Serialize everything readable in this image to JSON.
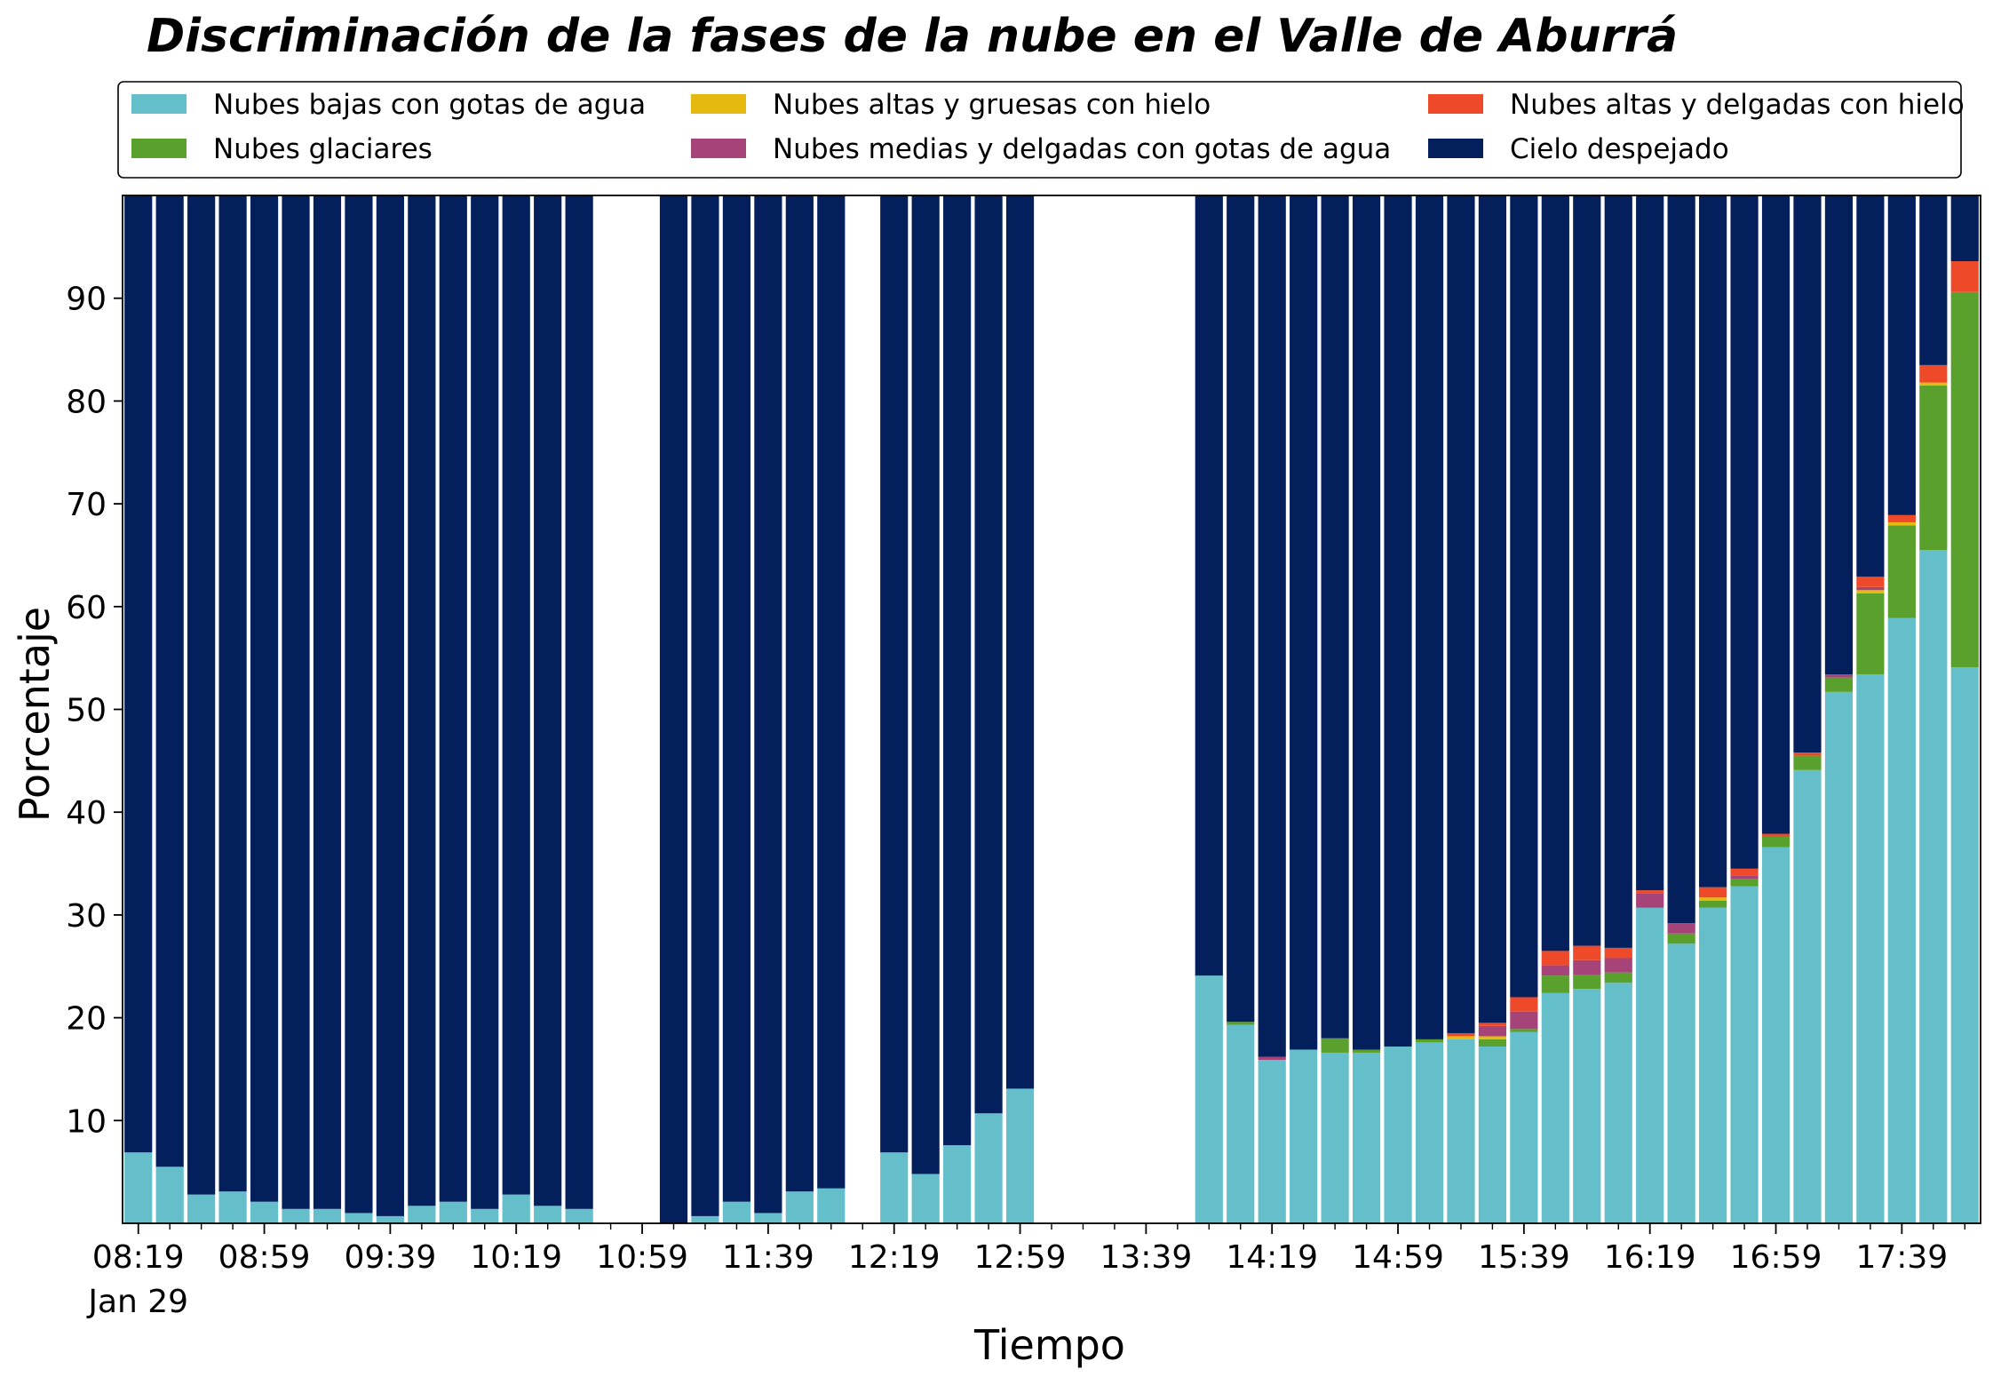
{
  "chart_data": {
    "type": "bar",
    "stacked": true,
    "title": "Discriminación de la fases de la nube en el Valle de Aburrá",
    "xlabel": "Tiempo",
    "ylabel": "Porcentaje",
    "ylim": [
      0,
      100
    ],
    "yticks": [
      10,
      20,
      30,
      40,
      50,
      60,
      70,
      80,
      90
    ],
    "xtick_labels": [
      "08:19",
      "08:59",
      "09:39",
      "10:19",
      "10:59",
      "11:39",
      "12:19",
      "12:59",
      "13:39",
      "14:19",
      "14:59",
      "15:39",
      "16:19",
      "16:59",
      "17:39"
    ],
    "xtick_sublabel": "Jan 29",
    "legend": {
      "placement": "top",
      "columns": 3
    },
    "grid": false,
    "series_order": [
      "bajas",
      "glaciares",
      "altas_gruesas",
      "medias_delgadas",
      "altas_delgadas",
      "despejado"
    ],
    "series": [
      {
        "key": "bajas",
        "name": "Nubes bajas con gotas de agua",
        "color": "#64bfca"
      },
      {
        "key": "glaciares",
        "name": "Nubes glaciares",
        "color": "#5aa02c"
      },
      {
        "key": "altas_gruesas",
        "name": "Nubes altas y gruesas con hielo",
        "color": "#e5b90f"
      },
      {
        "key": "medias_delgadas",
        "name": "Nubes medias y delgadas con gotas de agua",
        "color": "#a6447a"
      },
      {
        "key": "altas_delgadas",
        "name": "Nubes altas y delgadas con hielo",
        "color": "#ee4a2a"
      },
      {
        "key": "despejado",
        "name": "Cielo despejado",
        "color": "#03205c"
      }
    ],
    "x_interval_minutes": 10,
    "x_start": "08:19",
    "bars": [
      {
        "time": "08:19",
        "bajas": 6.9,
        "glaciares": 0,
        "altas_gruesas": 0,
        "medias_delgadas": 0,
        "altas_delgadas": 0,
        "despejado": 93.1
      },
      {
        "time": "08:29",
        "bajas": 5.5,
        "glaciares": 0,
        "altas_gruesas": 0,
        "medias_delgadas": 0,
        "altas_delgadas": 0,
        "despejado": 94.5
      },
      {
        "time": "08:39",
        "bajas": 2.8,
        "glaciares": 0,
        "altas_gruesas": 0,
        "medias_delgadas": 0,
        "altas_delgadas": 0,
        "despejado": 97.2
      },
      {
        "time": "08:49",
        "bajas": 3.1,
        "glaciares": 0,
        "altas_gruesas": 0,
        "medias_delgadas": 0,
        "altas_delgadas": 0,
        "despejado": 96.9
      },
      {
        "time": "08:59",
        "bajas": 2.1,
        "glaciares": 0,
        "altas_gruesas": 0,
        "medias_delgadas": 0,
        "altas_delgadas": 0,
        "despejado": 97.9
      },
      {
        "time": "09:09",
        "bajas": 1.4,
        "glaciares": 0,
        "altas_gruesas": 0,
        "medias_delgadas": 0,
        "altas_delgadas": 0,
        "despejado": 98.6
      },
      {
        "time": "09:19",
        "bajas": 1.4,
        "glaciares": 0,
        "altas_gruesas": 0,
        "medias_delgadas": 0,
        "altas_delgadas": 0,
        "despejado": 98.6
      },
      {
        "time": "09:29",
        "bajas": 1.0,
        "glaciares": 0,
        "altas_gruesas": 0,
        "medias_delgadas": 0,
        "altas_delgadas": 0,
        "despejado": 99.0
      },
      {
        "time": "09:39",
        "bajas": 0.7,
        "glaciares": 0,
        "altas_gruesas": 0,
        "medias_delgadas": 0,
        "altas_delgadas": 0,
        "despejado": 99.3
      },
      {
        "time": "09:49",
        "bajas": 1.7,
        "glaciares": 0,
        "altas_gruesas": 0,
        "medias_delgadas": 0,
        "altas_delgadas": 0,
        "despejado": 98.3
      },
      {
        "time": "09:59",
        "bajas": 2.1,
        "glaciares": 0,
        "altas_gruesas": 0,
        "medias_delgadas": 0,
        "altas_delgadas": 0,
        "despejado": 97.9
      },
      {
        "time": "10:09",
        "bajas": 1.4,
        "glaciares": 0,
        "altas_gruesas": 0,
        "medias_delgadas": 0,
        "altas_delgadas": 0,
        "despejado": 98.6
      },
      {
        "time": "10:19",
        "bajas": 2.8,
        "glaciares": 0,
        "altas_gruesas": 0,
        "medias_delgadas": 0,
        "altas_delgadas": 0,
        "despejado": 97.2
      },
      {
        "time": "10:29",
        "bajas": 1.7,
        "glaciares": 0,
        "altas_gruesas": 0,
        "medias_delgadas": 0,
        "altas_delgadas": 0,
        "despejado": 98.3
      },
      {
        "time": "10:39",
        "bajas": 1.4,
        "glaciares": 0,
        "altas_gruesas": 0,
        "medias_delgadas": 0,
        "altas_delgadas": 0,
        "despejado": 98.6
      },
      null,
      null,
      {
        "time": "11:09",
        "bajas": 0,
        "glaciares": 0,
        "altas_gruesas": 0,
        "medias_delgadas": 0,
        "altas_delgadas": 0,
        "despejado": 100
      },
      {
        "time": "11:19",
        "bajas": 0.7,
        "glaciares": 0,
        "altas_gruesas": 0,
        "medias_delgadas": 0,
        "altas_delgadas": 0,
        "despejado": 99.3
      },
      {
        "time": "11:29",
        "bajas": 2.1,
        "glaciares": 0,
        "altas_gruesas": 0,
        "medias_delgadas": 0,
        "altas_delgadas": 0,
        "despejado": 97.9
      },
      {
        "time": "11:39",
        "bajas": 1.0,
        "glaciares": 0,
        "altas_gruesas": 0,
        "medias_delgadas": 0,
        "altas_delgadas": 0,
        "despejado": 99.0
      },
      {
        "time": "11:49",
        "bajas": 3.1,
        "glaciares": 0,
        "altas_gruesas": 0,
        "medias_delgadas": 0,
        "altas_delgadas": 0,
        "despejado": 96.9
      },
      {
        "time": "11:59",
        "bajas": 3.4,
        "glaciares": 0,
        "altas_gruesas": 0,
        "medias_delgadas": 0,
        "altas_delgadas": 0,
        "despejado": 96.6
      },
      null,
      {
        "time": "12:19",
        "bajas": 6.9,
        "glaciares": 0,
        "altas_gruesas": 0,
        "medias_delgadas": 0,
        "altas_delgadas": 0,
        "despejado": 93.1
      },
      {
        "time": "12:29",
        "bajas": 4.8,
        "glaciares": 0,
        "altas_gruesas": 0,
        "medias_delgadas": 0,
        "altas_delgadas": 0,
        "despejado": 95.2
      },
      {
        "time": "12:39",
        "bajas": 7.6,
        "glaciares": 0,
        "altas_gruesas": 0,
        "medias_delgadas": 0,
        "altas_delgadas": 0,
        "despejado": 92.4
      },
      {
        "time": "12:49",
        "bajas": 10.7,
        "glaciares": 0,
        "altas_gruesas": 0,
        "medias_delgadas": 0,
        "altas_delgadas": 0,
        "despejado": 89.3
      },
      {
        "time": "12:59",
        "bajas": 13.1,
        "glaciares": 0,
        "altas_gruesas": 0,
        "medias_delgadas": 0,
        "altas_delgadas": 0,
        "despejado": 86.9
      },
      null,
      null,
      null,
      null,
      null,
      {
        "time": "13:59",
        "bajas": 24.1,
        "glaciares": 0,
        "altas_gruesas": 0,
        "medias_delgadas": 0,
        "altas_delgadas": 0,
        "despejado": 75.9
      },
      {
        "time": "14:09",
        "bajas": 19.3,
        "glaciares": 0.3,
        "altas_gruesas": 0,
        "medias_delgadas": 0,
        "altas_delgadas": 0,
        "despejado": 80.4
      },
      {
        "time": "14:19",
        "bajas": 15.9,
        "glaciares": 0,
        "altas_gruesas": 0,
        "medias_delgadas": 0.3,
        "altas_delgadas": 0,
        "despejado": 83.8
      },
      {
        "time": "14:29",
        "bajas": 16.9,
        "glaciares": 0,
        "altas_gruesas": 0,
        "medias_delgadas": 0,
        "altas_delgadas": 0,
        "despejado": 83.1
      },
      {
        "time": "14:39",
        "bajas": 16.6,
        "glaciares": 1.4,
        "altas_gruesas": 0,
        "medias_delgadas": 0,
        "altas_delgadas": 0,
        "despejado": 82.0
      },
      {
        "time": "14:49",
        "bajas": 16.6,
        "glaciares": 0.3,
        "altas_gruesas": 0,
        "medias_delgadas": 0,
        "altas_delgadas": 0,
        "despejado": 83.1
      },
      {
        "time": "14:59",
        "bajas": 17.2,
        "glaciares": 0,
        "altas_gruesas": 0,
        "medias_delgadas": 0,
        "altas_delgadas": 0,
        "despejado": 82.8
      },
      {
        "time": "15:09",
        "bajas": 17.6,
        "glaciares": 0.3,
        "altas_gruesas": 0,
        "medias_delgadas": 0,
        "altas_delgadas": 0,
        "despejado": 82.1
      },
      {
        "time": "15:19",
        "bajas": 17.9,
        "glaciares": 0,
        "altas_gruesas": 0.3,
        "medias_delgadas": 0,
        "altas_delgadas": 0.3,
        "despejado": 81.5
      },
      {
        "time": "15:29",
        "bajas": 17.2,
        "glaciares": 0.7,
        "altas_gruesas": 0.3,
        "medias_delgadas": 1.0,
        "altas_delgadas": 0.3,
        "despejado": 80.5
      },
      {
        "time": "15:39",
        "bajas": 18.6,
        "glaciares": 0.3,
        "altas_gruesas": 0,
        "medias_delgadas": 1.7,
        "altas_delgadas": 1.4,
        "despejado": 78.0
      },
      {
        "time": "15:49",
        "bajas": 22.4,
        "glaciares": 1.7,
        "altas_gruesas": 0,
        "medias_delgadas": 1.0,
        "altas_delgadas": 1.4,
        "despejado": 73.5
      },
      {
        "time": "15:59",
        "bajas": 22.8,
        "glaciares": 1.4,
        "altas_gruesas": 0,
        "medias_delgadas": 1.4,
        "altas_delgadas": 1.4,
        "despejado": 73.0
      },
      {
        "time": "16:09",
        "bajas": 23.4,
        "glaciares": 1.0,
        "altas_gruesas": 0,
        "medias_delgadas": 1.4,
        "altas_delgadas": 1.0,
        "despejado": 73.2
      },
      {
        "time": "16:19",
        "bajas": 30.7,
        "glaciares": 0,
        "altas_gruesas": 0,
        "medias_delgadas": 1.4,
        "altas_delgadas": 0.3,
        "despejado": 67.6
      },
      {
        "time": "16:29",
        "bajas": 27.2,
        "glaciares": 1.0,
        "altas_gruesas": 0,
        "medias_delgadas": 1.0,
        "altas_delgadas": 0,
        "despejado": 70.8
      },
      {
        "time": "16:39",
        "bajas": 30.7,
        "glaciares": 0.7,
        "altas_gruesas": 0.3,
        "medias_delgadas": 0,
        "altas_delgadas": 1.0,
        "despejado": 67.3
      },
      {
        "time": "16:49",
        "bajas": 32.8,
        "glaciares": 0.7,
        "altas_gruesas": 0,
        "medias_delgadas": 0.3,
        "altas_delgadas": 0.7,
        "despejado": 65.5
      },
      {
        "time": "16:59",
        "bajas": 36.6,
        "glaciares": 1.0,
        "altas_gruesas": 0,
        "medias_delgadas": 0,
        "altas_delgadas": 0.3,
        "despejado": 62.1
      },
      {
        "time": "17:09",
        "bajas": 44.1,
        "glaciares": 1.4,
        "altas_gruesas": 0,
        "medias_delgadas": 0,
        "altas_delgadas": 0.3,
        "despejado": 54.2
      },
      {
        "time": "17:19",
        "bajas": 51.7,
        "glaciares": 1.4,
        "altas_gruesas": 0,
        "medias_delgadas": 0.3,
        "altas_delgadas": 0,
        "despejado": 46.6
      },
      {
        "time": "17:29",
        "bajas": 53.4,
        "glaciares": 7.9,
        "altas_gruesas": 0.3,
        "medias_delgadas": 0.3,
        "altas_delgadas": 1.0,
        "despejado": 37.1
      },
      {
        "time": "17:39",
        "bajas": 58.9,
        "glaciares": 9.0,
        "altas_gruesas": 0.3,
        "medias_delgadas": 0,
        "altas_delgadas": 0.7,
        "despejado": 31.1
      },
      {
        "time": "17:49",
        "bajas": 65.5,
        "glaciares": 16.0,
        "altas_gruesas": 0.3,
        "medias_delgadas": 0,
        "altas_delgadas": 1.7,
        "despejado": 16.5
      },
      {
        "time": "17:59",
        "bajas": 54.1,
        "glaciares": 36.5,
        "altas_gruesas": 0,
        "medias_delgadas": 0,
        "altas_delgadas": 3.0,
        "despejado": 6.4
      }
    ]
  }
}
